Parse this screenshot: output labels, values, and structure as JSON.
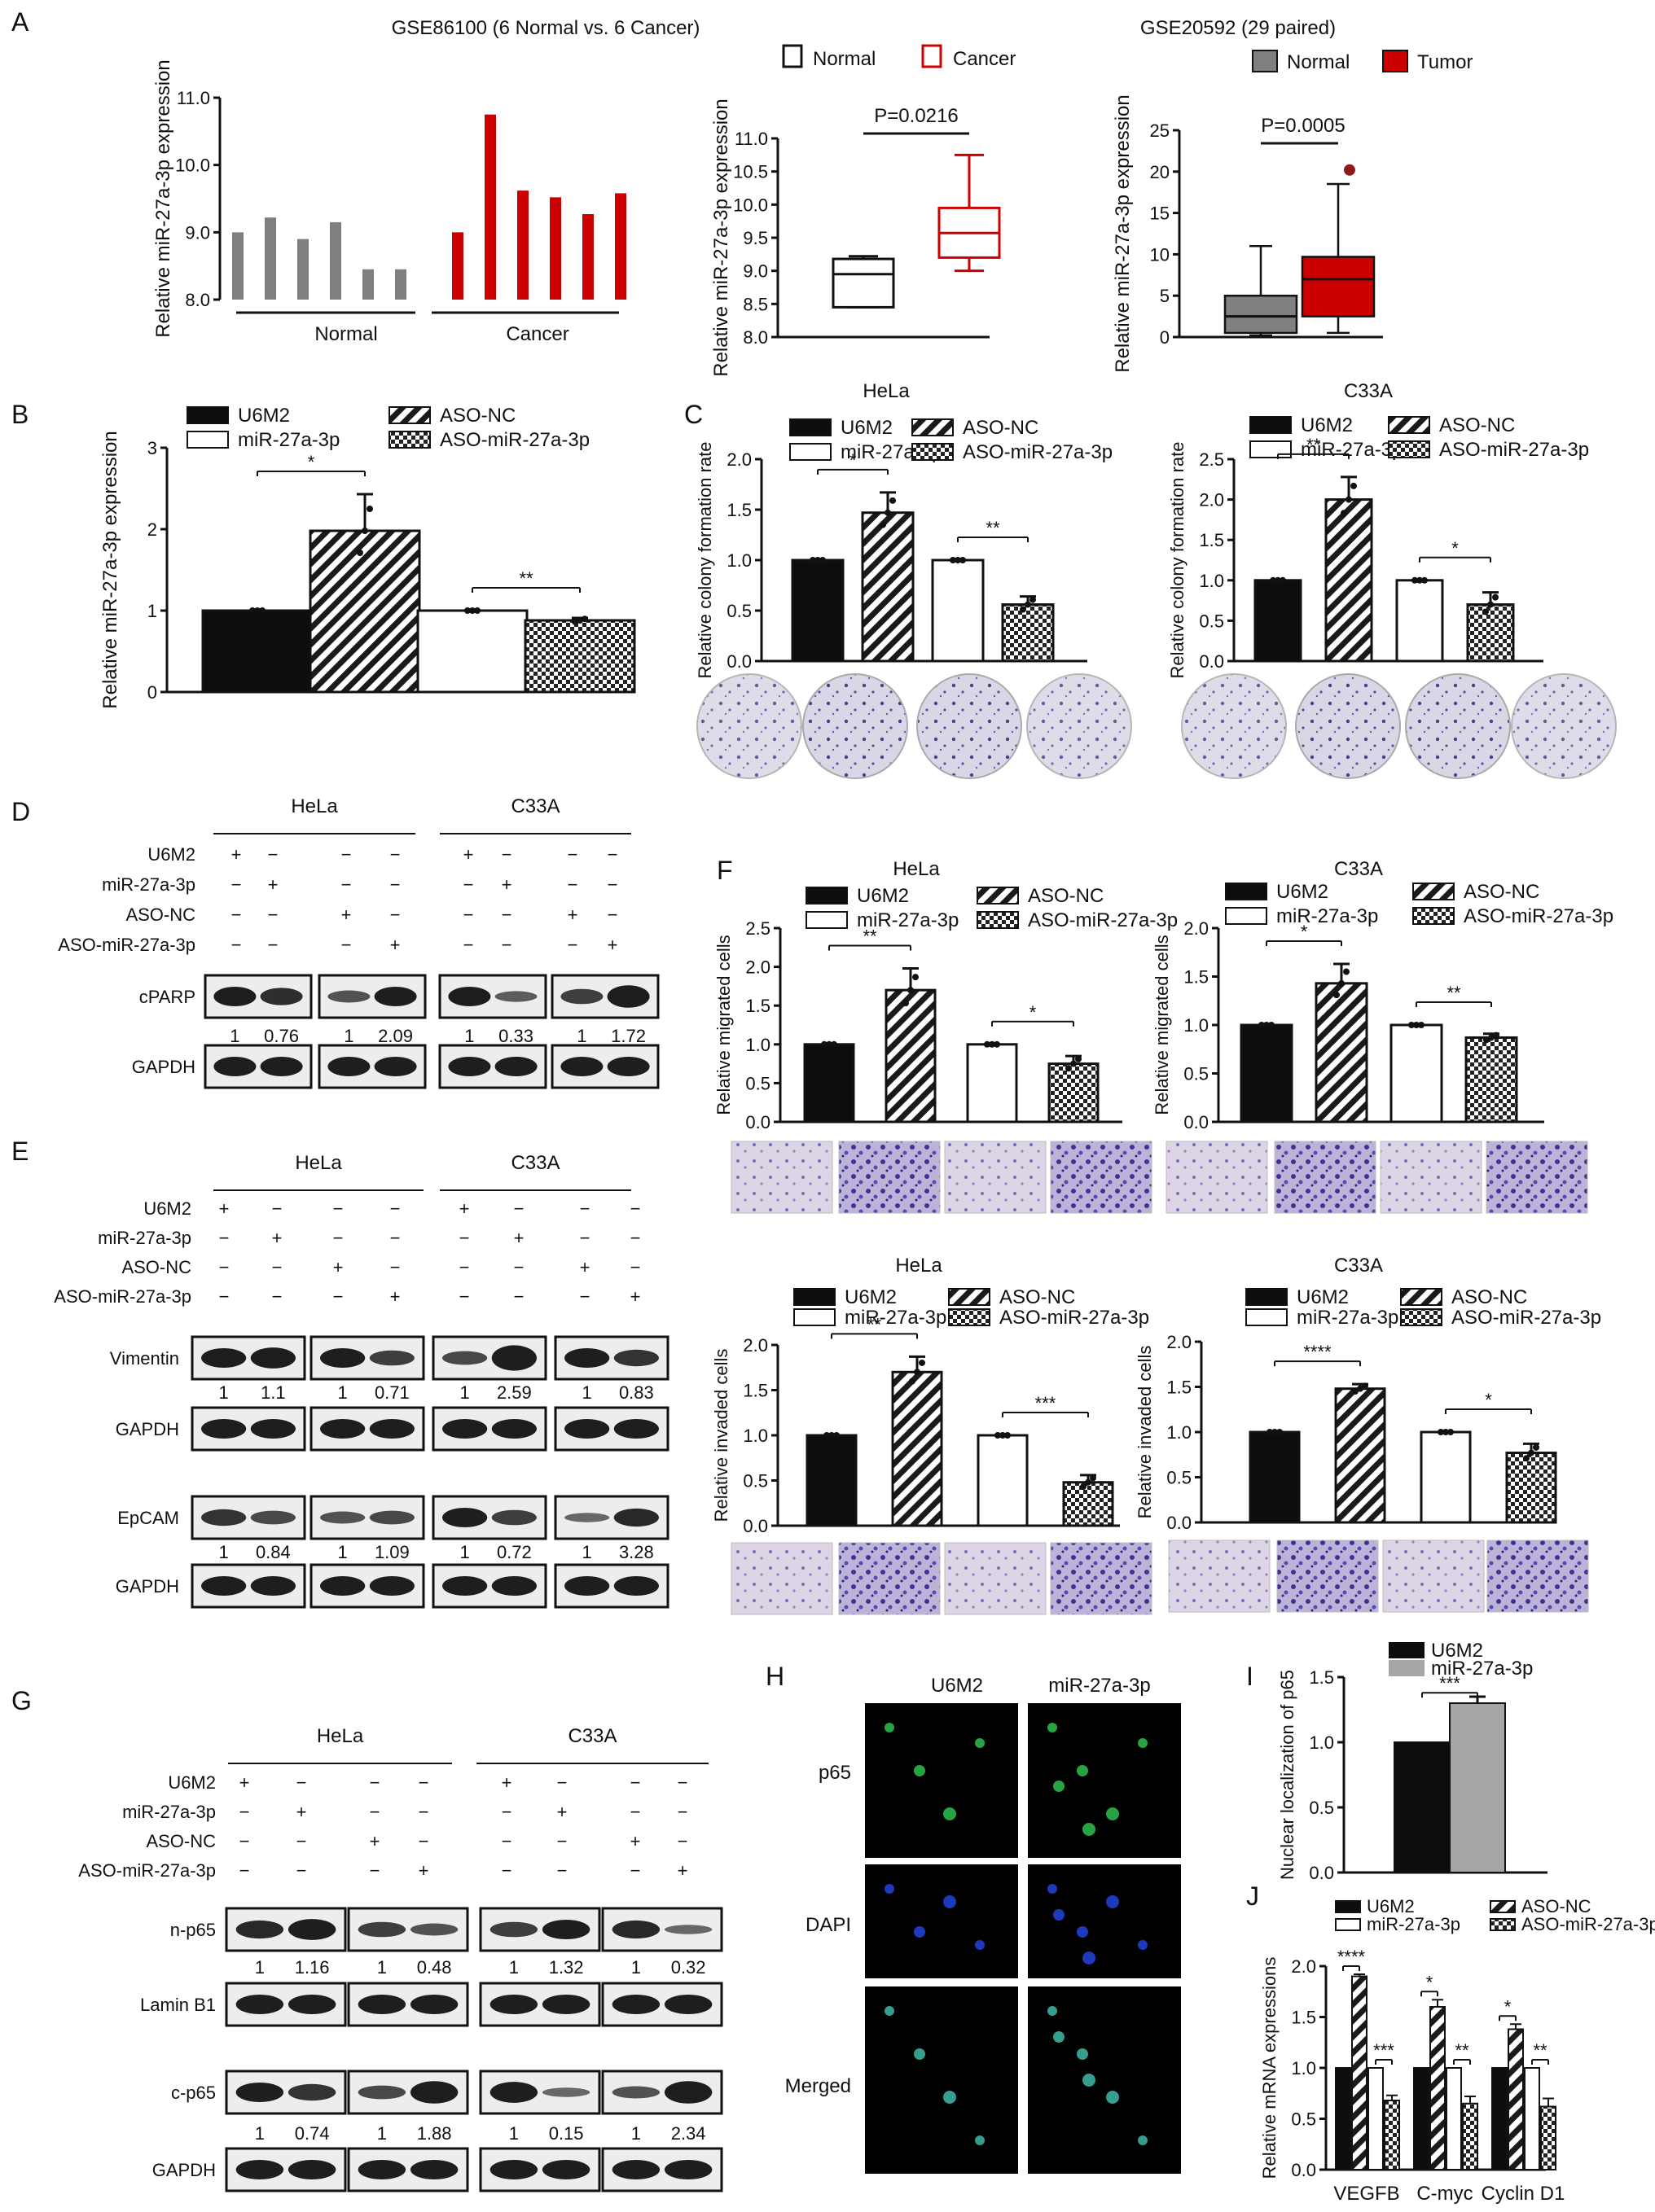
{
  "panel_letters": [
    "A",
    "B",
    "C",
    "D",
    "E",
    "F",
    "G",
    "H",
    "I",
    "J"
  ],
  "colors": {
    "black": "#0d0d0d",
    "white": "#ffffff",
    "gray": "#7f7f7f",
    "red": "#cc0000",
    "hatch": "#1a1a1a",
    "light_gray": "#a6a6a6"
  },
  "legends": {
    "A2": [
      "Normal",
      "Cancer"
    ],
    "A3": [
      "Normal",
      "Tumor"
    ],
    "grp": [
      "U6M2",
      "ASO-NC",
      "miR-27a-3p",
      "ASO-miR-27a-3p"
    ]
  },
  "chart_data": [
    {
      "id": "A1",
      "type": "bar",
      "title": "GSE86100 (6 Normal vs. 6 Cancer)",
      "ylabel": "Relative miR-27a-3p expression",
      "ylim": [
        8,
        11
      ],
      "yticks": [
        "8.0",
        "9.0",
        "10.0",
        "11.0"
      ],
      "groups": [
        "Normal",
        "Cancer"
      ],
      "values": [
        9.0,
        9.22,
        8.9,
        9.15,
        8.45,
        8.45,
        9.0,
        10.75,
        9.62,
        9.52,
        9.27,
        9.58
      ],
      "colors": [
        "gray",
        "gray",
        "gray",
        "gray",
        "gray",
        "gray",
        "red",
        "red",
        "red",
        "red",
        "red",
        "red"
      ]
    },
    {
      "id": "A2",
      "type": "box",
      "ylabel": "Relative miR-27a-3p expression",
      "ylim": [
        8,
        11
      ],
      "yticks": [
        "8.0",
        "8.5",
        "9.0",
        "9.5",
        "10.0",
        "10.5",
        "11.0"
      ],
      "p": "P=0.0216",
      "boxes": [
        {
          "name": "Normal",
          "min": 8.45,
          "q1": 8.45,
          "med": 8.95,
          "q3": 9.18,
          "max": 9.22
        },
        {
          "name": "Cancer",
          "min": 9.0,
          "q1": 9.2,
          "med": 9.57,
          "q3": 9.95,
          "max": 10.75
        }
      ]
    },
    {
      "id": "A3",
      "type": "box",
      "title": "GSE20592 (29 paired)",
      "ylabel": "Relative miR-27a-3p expression",
      "ylim": [
        0,
        25
      ],
      "yticks": [
        "0",
        "5",
        "10",
        "15",
        "20",
        "25"
      ],
      "p": "P=0.0005",
      "boxes": [
        {
          "name": "Normal",
          "min": 0.2,
          "q1": 0.5,
          "med": 2.5,
          "q3": 5.0,
          "max": 11.0
        },
        {
          "name": "Tumor",
          "min": 0.5,
          "q1": 2.5,
          "med": 7.0,
          "q3": 9.7,
          "max": 18.5,
          "outlier": 20.2
        }
      ]
    },
    {
      "id": "B",
      "type": "bar",
      "ylabel": "Relative miR-27a-3p expression",
      "ylim": [
        0,
        3
      ],
      "yticks": [
        "0",
        "1",
        "2",
        "3"
      ],
      "categories": [
        "U6M2",
        "miR-27a-3p",
        "ASO-NC",
        "ASO-miR-27a-3p"
      ],
      "values": [
        1.0,
        1.98,
        1.0,
        0.88
      ],
      "errors": [
        0.0,
        0.45,
        0.0,
        0.03
      ],
      "sig": [
        "*",
        "**"
      ]
    },
    {
      "id": "C-HeLa",
      "type": "bar",
      "title": "HeLa",
      "ylabel": "Relative colony formation rate",
      "ylim": [
        0,
        2
      ],
      "yticks": [
        "0.0",
        "0.5",
        "1.0",
        "1.5",
        "2.0"
      ],
      "categories": [
        "U6M2",
        "miR-27a-3p",
        "ASO-NC",
        "ASO-miR-27a-3p"
      ],
      "values": [
        1.0,
        1.47,
        1.0,
        0.56
      ],
      "errors": [
        0.0,
        0.2,
        0.0,
        0.08
      ],
      "sig": [
        "*",
        "**"
      ]
    },
    {
      "id": "C-C33A",
      "type": "bar",
      "title": "C33A",
      "ylabel": "Relative colony formation rate",
      "ylim": [
        0,
        2.5
      ],
      "yticks": [
        "0.0",
        "0.5",
        "1.0",
        "1.5",
        "2.0",
        "2.5"
      ],
      "categories": [
        "U6M2",
        "miR-27a-3p",
        "ASO-NC",
        "ASO-miR-27a-3p"
      ],
      "values": [
        1.0,
        2.0,
        1.0,
        0.7
      ],
      "errors": [
        0.0,
        0.28,
        0.0,
        0.15
      ],
      "sig": [
        "**",
        "*"
      ]
    },
    {
      "id": "F-mig-HeLa",
      "type": "bar",
      "title": "HeLa",
      "ylabel": "Relative migrated cells",
      "ylim": [
        0,
        2.5
      ],
      "yticks": [
        "0.0",
        "0.5",
        "1.0",
        "1.5",
        "2.0",
        "2.5"
      ],
      "categories": [
        "U6M2",
        "miR-27a-3p",
        "ASO-NC",
        "ASO-miR-27a-3p"
      ],
      "values": [
        1.0,
        1.7,
        1.0,
        0.75
      ],
      "errors": [
        0.0,
        0.28,
        0.0,
        0.1
      ],
      "sig": [
        "**",
        "*"
      ]
    },
    {
      "id": "F-mig-C33A",
      "type": "bar",
      "title": "C33A",
      "ylabel": "Relative migrated cells",
      "ylim": [
        0,
        2
      ],
      "yticks": [
        "0.0",
        "0.5",
        "1.0",
        "1.5",
        "2.0"
      ],
      "categories": [
        "U6M2",
        "miR-27a-3p",
        "ASO-NC",
        "ASO-miR-27a-3p"
      ],
      "values": [
        1.0,
        1.43,
        1.0,
        0.87
      ],
      "errors": [
        0.0,
        0.2,
        0.0,
        0.04
      ],
      "sig": [
        "*",
        "**"
      ]
    },
    {
      "id": "F-inv-HeLa",
      "type": "bar",
      "title": "HeLa",
      "ylabel": "Relative invaded cells",
      "ylim": [
        0,
        2
      ],
      "yticks": [
        "0.0",
        "0.5",
        "1.0",
        "1.5",
        "2.0"
      ],
      "categories": [
        "U6M2",
        "miR-27a-3p",
        "ASO-NC",
        "ASO-miR-27a-3p"
      ],
      "values": [
        1.0,
        1.7,
        1.0,
        0.48
      ],
      "errors": [
        0.0,
        0.17,
        0.0,
        0.08
      ],
      "sig": [
        "**",
        "***"
      ]
    },
    {
      "id": "F-inv-C33A",
      "type": "bar",
      "title": "C33A",
      "ylabel": "Relative invaded cells",
      "ylim": [
        0,
        2
      ],
      "yticks": [
        "0.0",
        "0.5",
        "1.0",
        "1.5",
        "2.0"
      ],
      "categories": [
        "U6M2",
        "miR-27a-3p",
        "ASO-NC",
        "ASO-miR-27a-3p"
      ],
      "values": [
        1.0,
        1.48,
        1.0,
        0.77
      ],
      "errors": [
        0.0,
        0.05,
        0.0,
        0.1
      ],
      "sig": [
        "****",
        "*"
      ]
    },
    {
      "id": "I",
      "type": "bar",
      "ylabel": "Nuclear localization of p65",
      "ylim": [
        0,
        1.5
      ],
      "yticks": [
        "0.0",
        "0.5",
        "1.0",
        "1.5"
      ],
      "categories": [
        "U6M2",
        "miR-27a-3p"
      ],
      "values": [
        1.0,
        1.3
      ],
      "errors": [
        0.0,
        0.05
      ],
      "sig": [
        "***"
      ]
    },
    {
      "id": "J",
      "type": "bar",
      "ylabel": "Relative mRNA expressions",
      "ylim": [
        0,
        2
      ],
      "yticks": [
        "0.0",
        "0.5",
        "1.0",
        "1.5",
        "2.0"
      ],
      "categories": [
        "VEGFB",
        "C-myc",
        "Cyclin D1"
      ],
      "series": [
        {
          "name": "U6M2",
          "values": [
            1.0,
            1.0,
            1.0
          ],
          "errors": [
            0,
            0,
            0
          ]
        },
        {
          "name": "miR-27a-3p",
          "values": [
            1.9,
            1.6,
            1.38
          ],
          "errors": [
            0.02,
            0.07,
            0.05
          ]
        },
        {
          "name": "ASO-NC",
          "values": [
            1.0,
            1.0,
            1.0
          ],
          "errors": [
            0,
            0,
            0
          ]
        },
        {
          "name": "ASO-miR-27a-3p",
          "values": [
            0.68,
            0.65,
            0.62
          ],
          "errors": [
            0.05,
            0.07,
            0.08
          ]
        }
      ],
      "sig": [
        "****",
        "***",
        "*",
        "**",
        "*",
        "**"
      ]
    }
  ],
  "blots": {
    "cell_lines": [
      "HeLa",
      "C33A"
    ],
    "row_labels": [
      "U6M2",
      "miR-27a-3p",
      "ASO-NC",
      "ASO-miR-27a-3p"
    ],
    "plus": "+",
    "minus": "−",
    "D": {
      "bands": [
        "cPARP",
        "GAPDH"
      ],
      "quant": [
        "1",
        "0.76",
        "1",
        "2.09",
        "1",
        "0.33",
        "1",
        "1.72"
      ]
    },
    "E": {
      "bands": [
        "Vimentin",
        "GAPDH",
        "EpCAM",
        "GAPDH"
      ],
      "quant_vim": [
        "1",
        "1.1",
        "1",
        "0.71",
        "1",
        "2.59",
        "1",
        "0.83"
      ],
      "quant_ep": [
        "1",
        "0.84",
        "1",
        "1.09",
        "1",
        "0.72",
        "1",
        "3.28"
      ]
    },
    "G": {
      "bands": [
        "n-p65",
        "Lamin B1",
        "c-p65",
        "GAPDH"
      ],
      "quant_np65": [
        "1",
        "1.16",
        "1",
        "0.48",
        "1",
        "1.32",
        "1",
        "0.32"
      ],
      "quant_cp65": [
        "1",
        "0.74",
        "1",
        "1.88",
        "1",
        "0.15",
        "1",
        "2.34"
      ]
    }
  },
  "H": {
    "cols": [
      "U6M2",
      "miR-27a-3p"
    ],
    "rows": [
      "p65",
      "DAPI",
      "Merged"
    ]
  }
}
